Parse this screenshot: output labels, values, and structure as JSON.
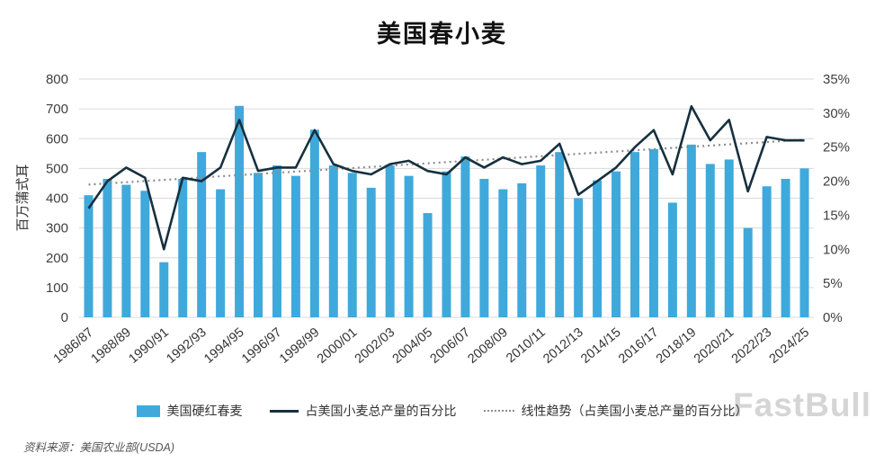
{
  "title": "美国春小麦",
  "source": "资料来源：美国农业部(USDA)",
  "watermark": "FastBull",
  "colors": {
    "bar": "#3FA9DC",
    "line": "#16303E",
    "trend": "#8c8c8c",
    "grid": "#d9d9d9"
  },
  "legend": [
    {
      "label": "美国硬红春麦",
      "type": "bar"
    },
    {
      "label": "占美国小麦总产量的百分比",
      "type": "line"
    },
    {
      "label": "线性趋势（占美国小麦总产量的百分比）",
      "type": "dotted"
    }
  ],
  "chart_data": {
    "type": "bar",
    "title": "美国春小麦",
    "ylabel_left": "百万蒲式耳",
    "ylim_left": [
      0,
      800
    ],
    "yticks_left": [
      0,
      100,
      200,
      300,
      400,
      500,
      600,
      700,
      800
    ],
    "ylim_right": [
      0,
      35
    ],
    "yticks_right": [
      "0%",
      "5%",
      "10%",
      "15%",
      "20%",
      "25%",
      "30%",
      "35%"
    ],
    "grid": true,
    "legend_position": "bottom",
    "categories": [
      "1986/87",
      "1987/88",
      "1988/89",
      "1989/90",
      "1990/91",
      "1991/92",
      "1992/93",
      "1993/94",
      "1994/95",
      "1995/96",
      "1996/97",
      "1997/98",
      "1998/99",
      "1999/00",
      "2000/01",
      "2001/02",
      "2002/03",
      "2003/04",
      "2004/05",
      "2005/06",
      "2006/07",
      "2007/08",
      "2008/09",
      "2009/10",
      "2010/11",
      "2011/12",
      "2012/13",
      "2013/14",
      "2014/15",
      "2015/16",
      "2016/17",
      "2017/18",
      "2018/19",
      "2019/20",
      "2020/21",
      "2021/22",
      "2022/23",
      "2023/24",
      "2024/25"
    ],
    "xtick_labels": [
      "1986/87",
      "1988/89",
      "1990/91",
      "1992/93",
      "1994/95",
      "1996/97",
      "1998/99",
      "2000/01",
      "2002/03",
      "2004/05",
      "2006/07",
      "2008/09",
      "2010/11",
      "2012/13",
      "2014/15",
      "2016/17",
      "2018/19",
      "2020/21",
      "2022/23",
      "2024/25"
    ],
    "series": [
      {
        "name": "美国硬红春麦",
        "type": "bar",
        "axis": "left",
        "values": [
          410,
          465,
          445,
          425,
          185,
          465,
          555,
          430,
          710,
          485,
          510,
          475,
          630,
          510,
          485,
          435,
          510,
          475,
          350,
          490,
          540,
          465,
          430,
          450,
          510,
          555,
          400,
          460,
          490,
          555,
          565,
          385,
          580,
          515,
          530,
          300,
          440,
          465,
          500
        ]
      },
      {
        "name": "占美国小麦总产量的百分比",
        "type": "line",
        "axis": "right",
        "values": [
          16,
          20,
          22,
          20.5,
          10,
          20.5,
          20,
          22,
          29,
          21.5,
          22,
          22,
          27.5,
          22.5,
          21.5,
          21,
          22.5,
          23,
          21.5,
          21,
          23.5,
          22,
          23.5,
          22.5,
          23,
          25.5,
          18,
          20,
          22,
          25,
          27.5,
          21,
          31,
          26,
          29,
          18.5,
          26.5,
          26,
          26
        ]
      },
      {
        "name": "线性趋势（占美国小麦总产量的百分比）",
        "type": "trend",
        "axis": "right",
        "start": 19.5,
        "end": 26.1
      }
    ]
  }
}
